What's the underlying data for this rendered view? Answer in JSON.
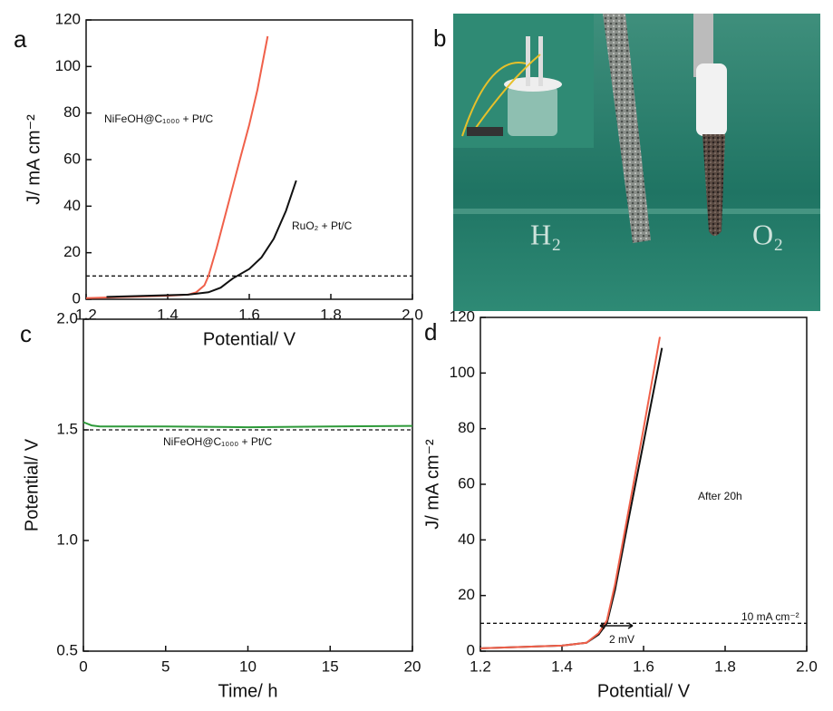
{
  "chart_data": [
    {
      "type": "line",
      "label": "a",
      "xlabel": "Potential/ V",
      "ylabel": "J/ mA cm⁻²",
      "xlim": [
        1.2,
        2.0
      ],
      "xticks": [
        1.2,
        1.4,
        1.6,
        1.8,
        {
          "value": 2.0,
          "label": "2.0"
        }
      ],
      "ylim": [
        0,
        120
      ],
      "yticks": [
        0,
        20,
        40,
        60,
        80,
        100,
        120
      ],
      "reference_line": 10,
      "series": [
        {
          "name": "NiFeOH@C₁₀₀₀ + Pt/C",
          "color": "#f0604a",
          "x": [
            1.2,
            1.3,
            1.4,
            1.45,
            1.47,
            1.49,
            1.5,
            1.52,
            1.55,
            1.58,
            1.6,
            1.62,
            1.645
          ],
          "values": [
            0.5,
            1,
            1.5,
            2,
            3,
            6,
            10,
            22,
            42,
            62,
            75,
            90,
            113
          ]
        },
        {
          "name": "RuO₂ + Pt/C",
          "color": "#111111",
          "x": [
            1.25,
            1.35,
            1.45,
            1.5,
            1.53,
            1.56,
            1.6,
            1.63,
            1.66,
            1.69,
            1.715
          ],
          "values": [
            1,
            1.5,
            2,
            3,
            5,
            9,
            13,
            18,
            26,
            38,
            51
          ]
        }
      ]
    },
    {
      "type": "photo",
      "label": "b",
      "texts": [
        "H₂",
        "O₂"
      ]
    },
    {
      "type": "line",
      "label": "c",
      "xlabel": "Time/ h",
      "ylabel": "Potential/ V",
      "xlim": [
        0,
        20
      ],
      "xticks": [
        0,
        5,
        10,
        15,
        20
      ],
      "ylim": [
        0.5,
        2.0
      ],
      "yticks": [
        0.5,
        {
          "value": 1.0,
          "label": "1.0"
        },
        1.5,
        {
          "value": 2.0,
          "label": "2.0"
        }
      ],
      "reference_line": 1.5,
      "series": [
        {
          "name": "NiFeOH@C₁₀₀₀ + Pt/C",
          "color": "#2e9a3a",
          "x": [
            0,
            0.5,
            1,
            2,
            5,
            10,
            15,
            20
          ],
          "values": [
            1.535,
            1.52,
            1.515,
            1.515,
            1.515,
            1.512,
            1.515,
            1.518
          ]
        }
      ]
    },
    {
      "type": "line",
      "label": "d",
      "xlabel": "Potential/ V",
      "ylabel": "J/ mA cm⁻²",
      "xlim": [
        1.2,
        2.0
      ],
      "xticks": [
        1.2,
        1.4,
        1.6,
        1.8,
        {
          "value": 2.0,
          "label": "2.0"
        }
      ],
      "ylim": [
        0,
        120
      ],
      "yticks": [
        0,
        20,
        40,
        60,
        80,
        100,
        120
      ],
      "reference_line": 10,
      "annotations": [
        "After 20h",
        "10 mA cm⁻²",
        "2 mV"
      ],
      "series": [
        {
          "color": "#111111",
          "x": [
            1.2,
            1.3,
            1.4,
            1.46,
            1.49,
            1.51,
            1.53,
            1.56,
            1.6,
            1.645
          ],
          "values": [
            1,
            1.5,
            2,
            3,
            6,
            10,
            22,
            45,
            75,
            109
          ]
        },
        {
          "color": "#f0604a",
          "x": [
            1.2,
            1.3,
            1.4,
            1.46,
            1.49,
            1.51,
            1.53,
            1.56,
            1.6,
            1.64
          ],
          "values": [
            1,
            1.5,
            2,
            3,
            6.5,
            11,
            24,
            48,
            80,
            113
          ]
        }
      ]
    }
  ]
}
